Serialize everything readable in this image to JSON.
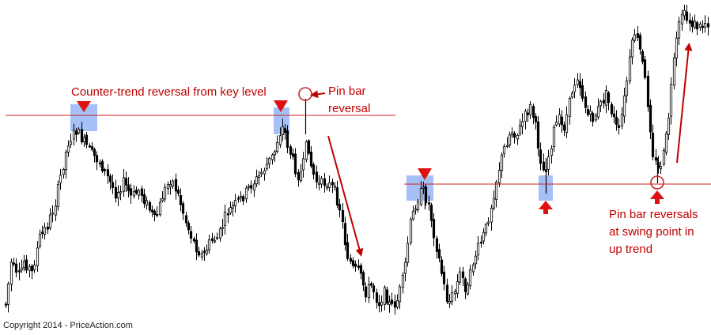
{
  "chart_data": {
    "type": "candlestick",
    "title": "",
    "xlabel": "",
    "ylabel": "",
    "series": [],
    "levels": [
      {
        "role": "key-resistance"
      },
      {
        "role": "swing-support"
      }
    ],
    "annotations": {
      "counter_trend": "Counter-trend reversal from key level",
      "pin_bar_line1": "Pin bar",
      "pin_bar_line2": "reversal",
      "swing_line1": "Pin bar reversals",
      "swing_line2": "at swing point in",
      "swing_line3": "up trend"
    },
    "colors": {
      "candle": "#000000",
      "level_line": "#cc2222",
      "annotation": "#c00000",
      "highlight_box": "#5b8def"
    },
    "grid": false,
    "legend": "none"
  },
  "footer": {
    "copyright": "Copyright 2014 - PriceAction.com"
  }
}
